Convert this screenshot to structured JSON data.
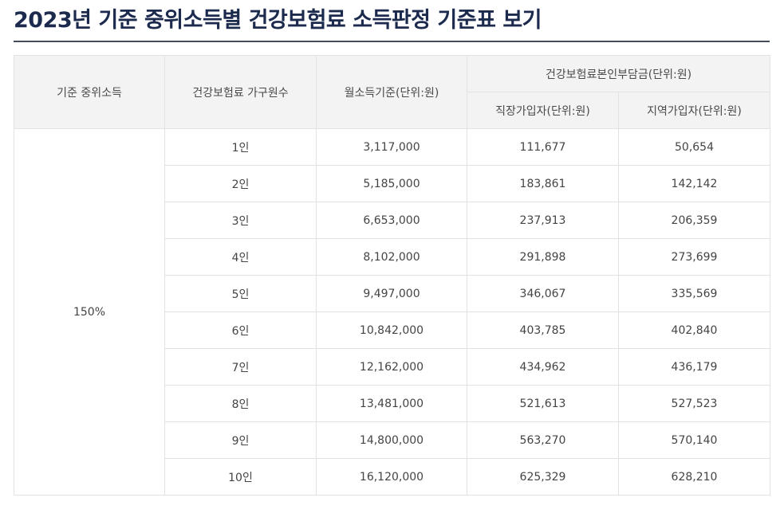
{
  "page": {
    "title": "2023년 기준 중위소득별 건강보험료 소득판정 기준표 보기"
  },
  "table": {
    "headers": {
      "median": "기준 중위소득",
      "household": "건강보험료 가구원수",
      "monthly_income": "월소득기준(단위:원)",
      "premium_group": "건강보험료본인부담금(단위:원)",
      "employee": "직장가입자(단위:원)",
      "regional": "지역가입자(단위:원)"
    },
    "median_value": "150%",
    "rows": [
      {
        "household": "1인",
        "monthly_income": "3,117,000",
        "employee": "111,677",
        "regional": "50,654"
      },
      {
        "household": "2인",
        "monthly_income": "5,185,000",
        "employee": "183,861",
        "regional": "142,142"
      },
      {
        "household": "3인",
        "monthly_income": "6,653,000",
        "employee": "237,913",
        "regional": "206,359"
      },
      {
        "household": "4인",
        "monthly_income": "8,102,000",
        "employee": "291,898",
        "regional": "273,699"
      },
      {
        "household": "5인",
        "monthly_income": "9,497,000",
        "employee": "346,067",
        "regional": "335,569"
      },
      {
        "household": "6인",
        "monthly_income": "10,842,000",
        "employee": "403,785",
        "regional": "402,840"
      },
      {
        "household": "7인",
        "monthly_income": "12,162,000",
        "employee": "434,962",
        "regional": "436,179"
      },
      {
        "household": "8인",
        "monthly_income": "13,481,000",
        "employee": "521,613",
        "regional": "527,523"
      },
      {
        "household": "9인",
        "monthly_income": "14,800,000",
        "employee": "563,270",
        "regional": "570,140"
      },
      {
        "household": "10인",
        "monthly_income": "16,120,000",
        "employee": "625,329",
        "regional": "628,210"
      }
    ]
  }
}
